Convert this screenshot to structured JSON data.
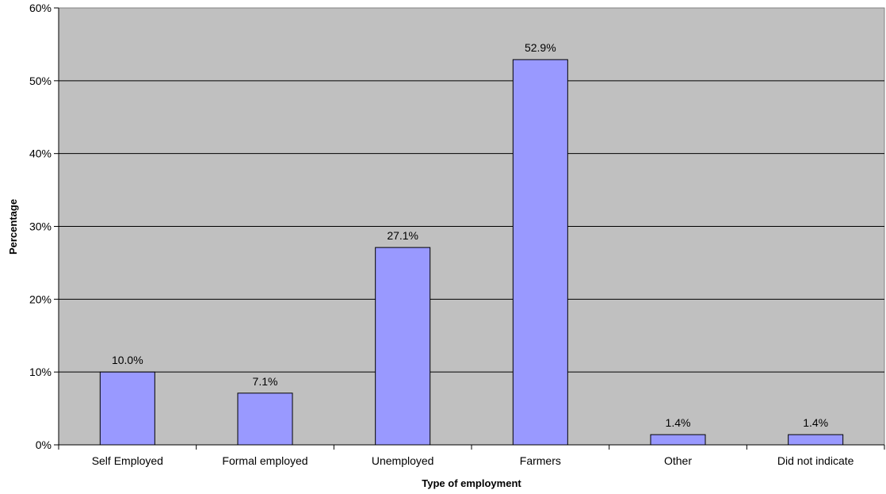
{
  "chart_data": {
    "type": "bar",
    "categories": [
      "Self Employed",
      "Formal employed",
      "Unemployed",
      "Farmers",
      "Other",
      "Did not indicate"
    ],
    "values": [
      10.0,
      7.1,
      27.1,
      52.9,
      1.4,
      1.4
    ],
    "data_labels": [
      "10.0%",
      "7.1%",
      "27.1%",
      "52.9%",
      "1.4%",
      "1.4%"
    ],
    "xlabel": "Type of employment",
    "ylabel": "Percentage",
    "ylim": [
      0,
      60
    ],
    "y_ticks": [
      0,
      10,
      20,
      30,
      40,
      50,
      60
    ],
    "y_tick_labels": [
      "0%",
      "10%",
      "20%",
      "30%",
      "40%",
      "50%",
      "60%"
    ],
    "grid": true,
    "legend": "none",
    "colors": {
      "plot_background": "#c0c0c0",
      "bar_fill": "#9999ff",
      "bar_stroke": "#000000",
      "gridline": "#000000"
    }
  }
}
